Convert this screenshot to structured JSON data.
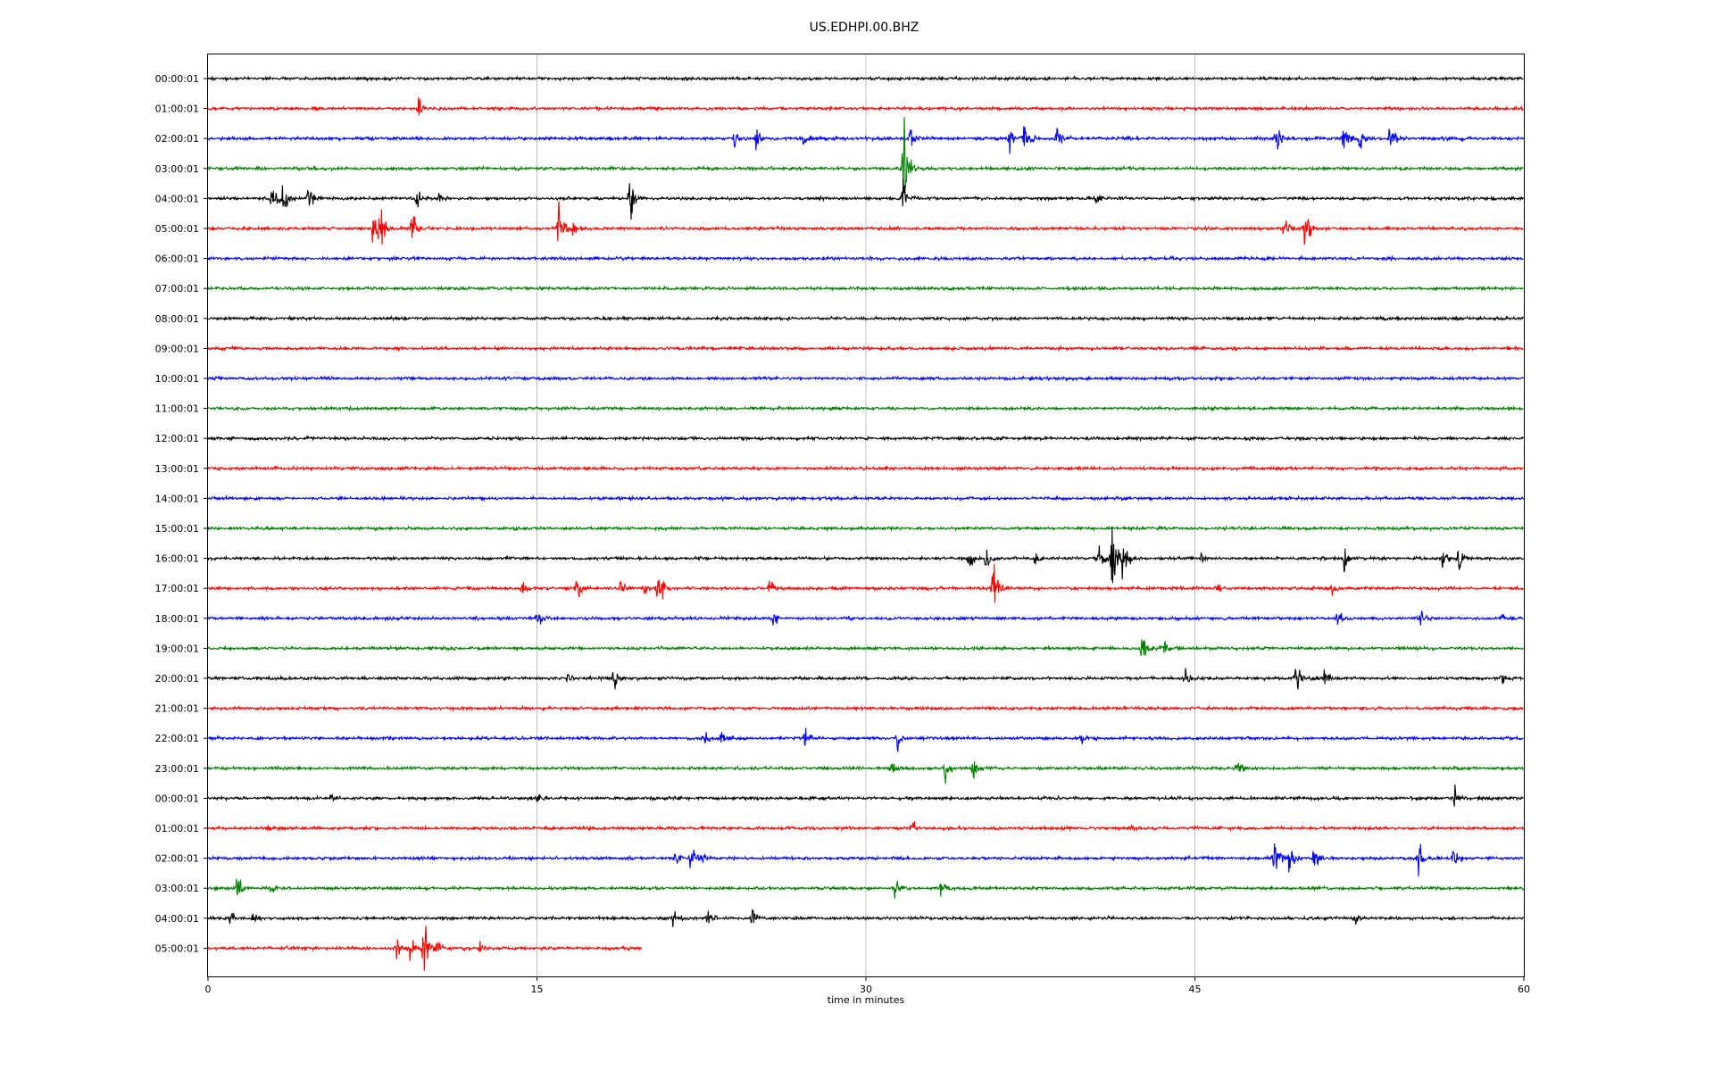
{
  "chart_data": {
    "type": "line",
    "chart_kind": "seismogram-helicorder",
    "title": "US.EDHPI.00.BHZ",
    "xlabel": "time in minutes",
    "ylabel": "",
    "xlim": [
      0,
      60
    ],
    "x_ticks": [
      0,
      15,
      30,
      45,
      60
    ],
    "grid": "vertical lines at x ticks",
    "legend": "none",
    "line_colors": [
      "#000000",
      "#ff0000",
      "#0000ff",
      "#008000"
    ],
    "rows": [
      {
        "label": "00:00:01",
        "color": "#000000",
        "end_minute": 60,
        "events": []
      },
      {
        "label": "01:00:01",
        "color": "#ff0000",
        "end_minute": 60,
        "events": [
          {
            "t": 9.6,
            "amp": 0.45
          }
        ]
      },
      {
        "label": "02:00:01",
        "color": "#0000ff",
        "end_minute": 60,
        "events": [
          {
            "t": 24.0,
            "amp": 0.4
          },
          {
            "t": 25.0,
            "amp": 0.5
          },
          {
            "t": 27.1,
            "amp": 0.5
          },
          {
            "t": 32.0,
            "amp": 0.35
          },
          {
            "t": 36.5,
            "amp": 0.5
          },
          {
            "t": 37.2,
            "amp": 0.9
          },
          {
            "t": 38.7,
            "amp": 0.6
          },
          {
            "t": 48.7,
            "amp": 0.5
          },
          {
            "t": 51.8,
            "amp": 0.7
          },
          {
            "t": 52.5,
            "amp": 0.5
          },
          {
            "t": 53.9,
            "amp": 0.8
          }
        ]
      },
      {
        "label": "03:00:01",
        "color": "#008000",
        "end_minute": 60,
        "events": [
          {
            "t": 31.7,
            "amp": 1.6
          }
        ]
      },
      {
        "label": "04:00:01",
        "color": "#000000",
        "end_minute": 60,
        "events": [
          {
            "t": 2.9,
            "amp": 0.6
          },
          {
            "t": 3.4,
            "amp": 0.9
          },
          {
            "t": 4.6,
            "amp": 0.7
          },
          {
            "t": 9.5,
            "amp": 0.4
          },
          {
            "t": 10.5,
            "amp": 0.3
          },
          {
            "t": 19.2,
            "amp": 0.9
          },
          {
            "t": 31.7,
            "amp": 0.9
          },
          {
            "t": 40.5,
            "amp": 0.35
          }
        ]
      },
      {
        "label": "05:00:01",
        "color": "#ff0000",
        "end_minute": 60,
        "events": [
          {
            "t": 7.5,
            "amp": 0.6
          },
          {
            "t": 7.8,
            "amp": 1.6
          },
          {
            "t": 9.3,
            "amp": 0.9
          },
          {
            "t": 16.0,
            "amp": 1.0
          },
          {
            "t": 16.6,
            "amp": 0.4
          },
          {
            "t": 49.0,
            "amp": 0.6
          },
          {
            "t": 50.0,
            "amp": 0.9
          }
        ]
      },
      {
        "label": "06:00:01",
        "color": "#0000ff",
        "end_minute": 60,
        "events": []
      },
      {
        "label": "07:00:01",
        "color": "#008000",
        "end_minute": 60,
        "events": []
      },
      {
        "label": "08:00:01",
        "color": "#000000",
        "end_minute": 60,
        "events": []
      },
      {
        "label": "09:00:01",
        "color": "#ff0000",
        "end_minute": 60,
        "events": []
      },
      {
        "label": "10:00:01",
        "color": "#0000ff",
        "end_minute": 60,
        "events": []
      },
      {
        "label": "11:00:01",
        "color": "#008000",
        "end_minute": 60,
        "events": []
      },
      {
        "label": "12:00:01",
        "color": "#000000",
        "end_minute": 60,
        "events": []
      },
      {
        "label": "13:00:01",
        "color": "#ff0000",
        "end_minute": 60,
        "events": []
      },
      {
        "label": "14:00:01",
        "color": "#0000ff",
        "end_minute": 60,
        "events": []
      },
      {
        "label": "15:00:01",
        "color": "#008000",
        "end_minute": 60,
        "events": []
      },
      {
        "label": "16:00:01",
        "color": "#000000",
        "end_minute": 60,
        "events": [
          {
            "t": 34.7,
            "amp": 0.4
          },
          {
            "t": 35.5,
            "amp": 0.6
          },
          {
            "t": 37.7,
            "amp": 0.4
          },
          {
            "t": 40.6,
            "amp": 1.0
          },
          {
            "t": 41.2,
            "amp": 1.4
          },
          {
            "t": 41.7,
            "amp": 0.8
          },
          {
            "t": 45.3,
            "amp": 0.3
          },
          {
            "t": 51.8,
            "amp": 0.5
          },
          {
            "t": 56.3,
            "amp": 0.5
          },
          {
            "t": 57.0,
            "amp": 0.5
          }
        ]
      },
      {
        "label": "17:00:01",
        "color": "#ff0000",
        "end_minute": 60,
        "events": [
          {
            "t": 14.3,
            "amp": 0.35
          },
          {
            "t": 16.8,
            "amp": 0.6
          },
          {
            "t": 18.8,
            "amp": 0.5
          },
          {
            "t": 19.9,
            "amp": 0.45
          },
          {
            "t": 20.5,
            "amp": 0.9
          },
          {
            "t": 25.6,
            "amp": 0.4
          },
          {
            "t": 35.8,
            "amp": 1.2
          },
          {
            "t": 46.0,
            "amp": 0.3
          },
          {
            "t": 51.2,
            "amp": 0.5
          }
        ]
      },
      {
        "label": "18:00:01",
        "color": "#0000ff",
        "end_minute": 60,
        "events": [
          {
            "t": 15.0,
            "amp": 0.35
          },
          {
            "t": 25.8,
            "amp": 0.35
          },
          {
            "t": 51.5,
            "amp": 0.3
          },
          {
            "t": 55.3,
            "amp": 0.35
          },
          {
            "t": 59.0,
            "amp": 0.25
          }
        ]
      },
      {
        "label": "19:00:01",
        "color": "#008000",
        "end_minute": 60,
        "events": [
          {
            "t": 42.6,
            "amp": 0.8
          },
          {
            "t": 43.5,
            "amp": 0.5
          }
        ]
      },
      {
        "label": "20:00:01",
        "color": "#000000",
        "end_minute": 60,
        "events": [
          {
            "t": 16.4,
            "amp": 0.3
          },
          {
            "t": 18.5,
            "amp": 0.5
          },
          {
            "t": 44.5,
            "amp": 0.45
          },
          {
            "t": 49.6,
            "amp": 0.6
          },
          {
            "t": 50.9,
            "amp": 0.5
          },
          {
            "t": 59.0,
            "amp": 0.3
          }
        ]
      },
      {
        "label": "21:00:01",
        "color": "#ff0000",
        "end_minute": 60,
        "events": []
      },
      {
        "label": "22:00:01",
        "color": "#0000ff",
        "end_minute": 60,
        "events": [
          {
            "t": 22.6,
            "amp": 0.4
          },
          {
            "t": 23.4,
            "amp": 0.3
          },
          {
            "t": 27.2,
            "amp": 0.4
          },
          {
            "t": 31.4,
            "amp": 0.5
          },
          {
            "t": 39.8,
            "amp": 0.25
          }
        ]
      },
      {
        "label": "23:00:01",
        "color": "#008000",
        "end_minute": 60,
        "events": [
          {
            "t": 31.1,
            "amp": 0.4
          },
          {
            "t": 33.6,
            "amp": 0.5
          },
          {
            "t": 34.9,
            "amp": 0.45
          },
          {
            "t": 46.9,
            "amp": 0.5
          }
        ]
      },
      {
        "label": "00:00:01",
        "color": "#000000",
        "end_minute": 60,
        "events": [
          {
            "t": 5.6,
            "amp": 0.25
          },
          {
            "t": 15.0,
            "amp": 0.2
          },
          {
            "t": 56.8,
            "amp": 0.55
          }
        ]
      },
      {
        "label": "01:00:01",
        "color": "#ff0000",
        "end_minute": 60,
        "events": [
          {
            "t": 2.7,
            "amp": 0.25
          },
          {
            "t": 32.1,
            "amp": 0.25
          },
          {
            "t": 42.0,
            "amp": 0.25
          }
        ]
      },
      {
        "label": "02:00:01",
        "color": "#0000ff",
        "end_minute": 60,
        "events": [
          {
            "t": 21.3,
            "amp": 0.5
          },
          {
            "t": 22.0,
            "amp": 0.6
          },
          {
            "t": 22.5,
            "amp": 0.5
          },
          {
            "t": 48.6,
            "amp": 0.8
          },
          {
            "t": 49.3,
            "amp": 0.5
          },
          {
            "t": 50.4,
            "amp": 0.6
          },
          {
            "t": 55.2,
            "amp": 0.7
          },
          {
            "t": 56.8,
            "amp": 0.5
          }
        ]
      },
      {
        "label": "03:00:01",
        "color": "#008000",
        "end_minute": 60,
        "events": [
          {
            "t": 1.3,
            "amp": 0.45
          },
          {
            "t": 2.9,
            "amp": 0.3
          },
          {
            "t": 31.3,
            "amp": 0.6
          },
          {
            "t": 33.4,
            "amp": 0.35
          }
        ]
      },
      {
        "label": "04:00:01",
        "color": "#000000",
        "end_minute": 60,
        "events": [
          {
            "t": 1.0,
            "amp": 0.3
          },
          {
            "t": 2.0,
            "amp": 0.4
          },
          {
            "t": 21.2,
            "amp": 0.35
          },
          {
            "t": 22.8,
            "amp": 0.3
          },
          {
            "t": 24.8,
            "amp": 0.45
          },
          {
            "t": 52.3,
            "amp": 0.3
          }
        ]
      },
      {
        "label": "05:00:01",
        "color": "#ff0000",
        "end_minute": 19.8,
        "events": [
          {
            "t": 8.6,
            "amp": 0.5
          },
          {
            "t": 9.2,
            "amp": 0.6
          },
          {
            "t": 9.8,
            "amp": 1.2
          },
          {
            "t": 10.4,
            "amp": 0.5
          },
          {
            "t": 12.4,
            "amp": 0.25
          }
        ]
      }
    ]
  }
}
